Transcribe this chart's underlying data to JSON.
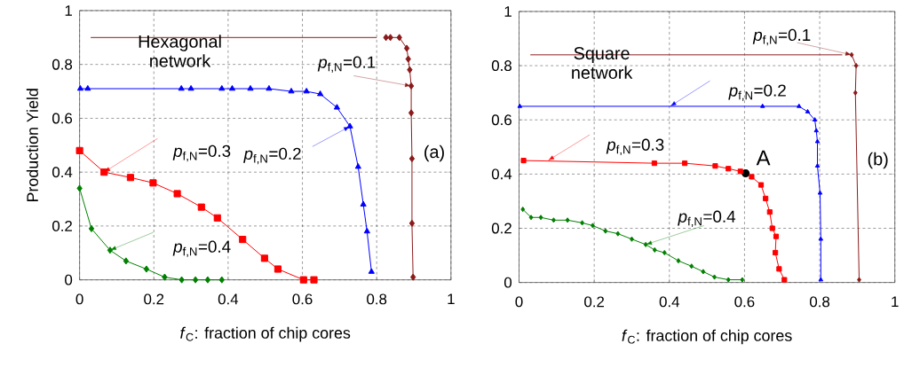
{
  "chart_data": [
    {
      "type": "line",
      "xlabel": "*f*$_{C}$: fraction of chip cores",
      "ylabel": "Production Yield",
      "xlim": [
        0,
        1
      ],
      "ylim": [
        0,
        1
      ],
      "xticks": [
        0,
        0.2,
        0.4,
        0.6,
        0.8,
        1
      ],
      "yticks": [
        0,
        0.2,
        0.4,
        0.6,
        0.8,
        1
      ],
      "grid": true,
      "series": [
        {
          "type": "line",
          "marker": "none",
          "color": "#8b1a1a",
          "x": [
            0.03,
            0.8
          ],
          "values": [
            0.9,
            0.9
          ]
        },
        {
          "marker": "diamond",
          "color": "#8b1a1a",
          "x": [
            0.825,
            0.837,
            0.861,
            0.881,
            0.885,
            0.889,
            0.893,
            0.893,
            0.895,
            0.895,
            0.898
          ],
          "values": [
            0.9,
            0.9,
            0.9,
            0.86,
            0.82,
            0.78,
            0.72,
            0.62,
            0.45,
            0.21,
            0.01
          ]
        },
        {
          "marker": "triangle",
          "color": "#0000ff",
          "x": [
            0.002,
            0.022,
            0.274,
            0.3,
            0.383,
            0.411,
            0.46,
            0.51,
            0.57,
            0.611,
            0.648,
            0.693,
            0.728,
            0.75,
            0.764,
            0.774,
            0.786
          ],
          "values": [
            0.71,
            0.71,
            0.71,
            0.71,
            0.71,
            0.71,
            0.71,
            0.71,
            0.7,
            0.7,
            0.69,
            0.64,
            0.57,
            0.42,
            0.28,
            0.18,
            0.03
          ]
        },
        {
          "marker": "square",
          "color": "#ff0000",
          "x": [
            0,
            0.066,
            0.137,
            0.198,
            0.263,
            0.328,
            0.371,
            0.439,
            0.498,
            0.534,
            0.603,
            0.631
          ],
          "values": [
            0.48,
            0.4,
            0.38,
            0.36,
            0.32,
            0.27,
            0.23,
            0.15,
            0.08,
            0.04,
            0,
            0
          ]
        },
        {
          "marker": "diamond",
          "color": "#008000",
          "x": [
            0,
            0.032,
            0.082,
            0.125,
            0.18,
            0.229,
            0.275,
            0.312,
            0.345,
            0.383
          ],
          "values": [
            0.34,
            0.19,
            0.11,
            0.07,
            0.04,
            0.01,
            0,
            0,
            0,
            0
          ]
        }
      ],
      "annotations": [
        "Hexagonal network",
        {
          "text": "*p*$_{f,N}$=0.1",
          "x": 0.893,
          "y": 0.72
        },
        {
          "text": "*p*$_{f,N}$=0.2",
          "x": 0.728,
          "y": 0.57
        },
        {
          "text": "*p*$_{f,N}$=0.3",
          "x": 0.066,
          "y": 0.4
        },
        {
          "text": "*p*$_{f,N}$=0.4",
          "x": 0.082,
          "y": 0.11
        },
        "(a)"
      ]
    },
    {
      "type": "line",
      "xlabel": "*f*$_{C}$: fraction of chip cores",
      "xlim": [
        0,
        1
      ],
      "ylim": [
        0,
        1
      ],
      "xticks": [
        0,
        0.2,
        0.4,
        0.6,
        0.8,
        1
      ],
      "yticks": [
        0,
        0.2,
        0.4,
        0.6,
        0.8,
        1
      ],
      "grid": true,
      "series": [
        {
          "type": "line",
          "marker": "none",
          "color": "#8b1a1a",
          "x": [
            0.03,
            0.86
          ],
          "values": [
            0.84,
            0.84
          ]
        },
        {
          "marker": "diamond",
          "color": "#8b1a1a",
          "x": [
            0.885,
            0.897,
            0.895,
            0.905
          ],
          "values": [
            0.84,
            0.8,
            0.7,
            0.01
          ]
        },
        {
          "marker": "triangle",
          "color": "#0000ff",
          "x": [
            0.002,
            0.648,
            0.745,
            0.768,
            0.787,
            0.791,
            0.794,
            0.794,
            0.801,
            0.803,
            0.803
          ],
          "values": [
            0.65,
            0.65,
            0.65,
            0.63,
            0.6,
            0.56,
            0.52,
            0.43,
            0.33,
            0.16,
            0.01
          ]
        },
        {
          "marker": "square",
          "color": "#ff0000",
          "x": [
            0.012,
            0.36,
            0.441,
            0.522,
            0.557,
            0.589,
            0.619,
            0.644,
            0.656,
            0.667,
            0.674,
            0.684,
            0.682,
            0.692,
            0.706
          ],
          "values": [
            0.45,
            0.44,
            0.44,
            0.43,
            0.42,
            0.41,
            0.39,
            0.36,
            0.31,
            0.26,
            0.2,
            0.17,
            0.11,
            0.05,
            0.01
          ]
        },
        {
          "marker": "diamond",
          "color": "#008000",
          "x": [
            0.01,
            0.032,
            0.058,
            0.092,
            0.129,
            0.168,
            0.196,
            0.23,
            0.263,
            0.3,
            0.337,
            0.361,
            0.387,
            0.424,
            0.459,
            0.49,
            0.52,
            0.557,
            0.594
          ],
          "values": [
            0.27,
            0.24,
            0.24,
            0.23,
            0.23,
            0.22,
            0.21,
            0.19,
            0.18,
            0.16,
            0.14,
            0.12,
            0.11,
            0.08,
            0.06,
            0.04,
            0.02,
            0.01,
            0.01
          ]
        }
      ],
      "annotations": [
        "Square network",
        {
          "text": "*p*$_{f,N}$=0.1",
          "x": 0.885,
          "y": 0.84
        },
        {
          "text": "*p*$_{f,N}$=0.2",
          "x": 0.402,
          "y": 0.65
        },
        {
          "text": "*p*$_{f,N}$=0.3",
          "x": 0.077,
          "y": 0.45
        },
        {
          "text": "*p*$_{f,N}$=0.4",
          "x": 0.337,
          "y": 0.14
        },
        {
          "text": "A",
          "x": 0.603,
          "y": 0.403
        },
        "(b)"
      ]
    }
  ]
}
